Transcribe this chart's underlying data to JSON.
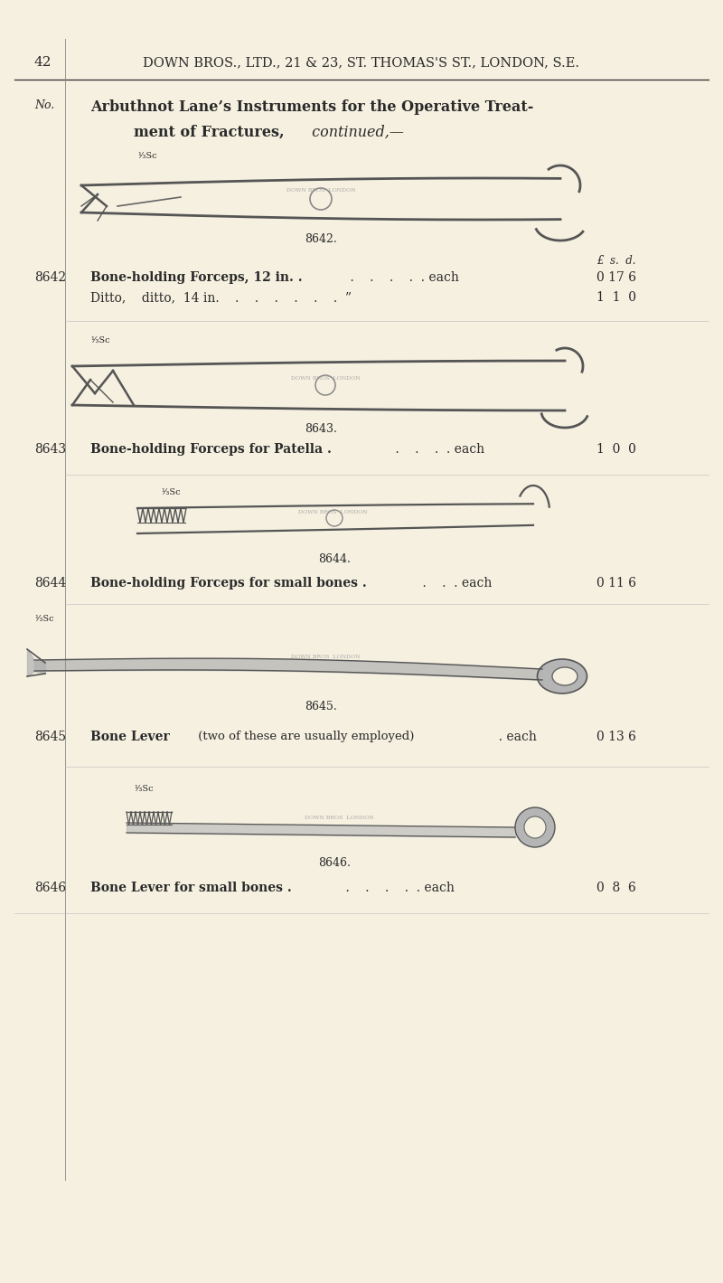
{
  "bg_color": "#f5f0e0",
  "text_color": "#2a2a2a",
  "page_number": "42",
  "header": "DOWN BROS., LTD., 21 & 23, ST. THOMAS'S ST., LONDON, S.E.",
  "no_label": "No.",
  "currency_header": "£  s.  d.",
  "items": [
    {
      "number": "8642",
      "fig_label": "8642.",
      "scale_label": "¹⁄₃Sc",
      "desc_bold": "Bone-holding Forceps, 12 in. .",
      "desc_dots": "    .    .    .    .  . each",
      "price": "0 17 6",
      "sub_desc": "Ditto,    ditto,  14 in.    .    .    .    .    .    .  ”",
      "sub_price": "1  1  0"
    },
    {
      "number": "8643",
      "fig_label": "8643.",
      "scale_label": "¹⁄₃Sc",
      "desc_bold": "Bone-holding Forceps for Patella .",
      "desc_dots": "    .    .    .  . each",
      "price": "1  0  0"
    },
    {
      "number": "8644",
      "fig_label": "8644.",
      "scale_label": "¹⁄₃Sc",
      "desc_bold": "Bone-holding Forceps for small bones .",
      "desc_dots": "    .    .  . each",
      "price": "0 11 6"
    },
    {
      "number": "8645",
      "fig_label": "8645.",
      "scale_label": "¹⁄₃Sc",
      "desc_bold": "Bone Lever",
      "desc_normal": " (two of these are usually employed)",
      "desc_dots": "  . each",
      "price": "0 13 6"
    },
    {
      "number": "8646",
      "fig_label": "8646.",
      "scale_label": "¹⁄₃Sc",
      "desc_bold": "Bone Lever for small bones .",
      "desc_dots": "    .    .    .    .  . each",
      "price": "0  8  6"
    }
  ]
}
